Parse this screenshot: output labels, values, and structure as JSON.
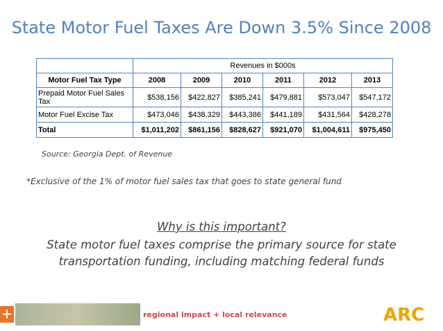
{
  "title": "State Motor Fuel Taxes Are Down 3.5% Since 2008",
  "table": {
    "group_header": "Revenues in $000s",
    "columns": [
      "Motor Fuel Tax Type",
      "2008",
      "2009",
      "2010",
      "2011",
      "2012",
      "2013"
    ],
    "rows": [
      [
        "Prepaid Motor Fuel Sales Tax",
        "$538,156",
        "$422,827",
        "$385,241",
        "$479,881",
        "$573,047",
        "$547,172"
      ],
      [
        "Motor Fuel Excise Tax",
        "$473,046",
        "$438,329",
        "$443,386",
        "$441,189",
        "$431,564",
        "$428,278"
      ],
      [
        "Total",
        "$1,011,202",
        "$861,156",
        "$828,627",
        "$921,070",
        "$1,004,611",
        "$975,450"
      ]
    ]
  },
  "source": "Source: Georgia Dept. of Revenue",
  "footnote": "*Exclusive of the 1% of motor fuel sales tax that goes to state general fund",
  "question": "Why is this important?",
  "explanation": "State motor fuel taxes comprise the primary source for state transportation funding, including matching federal funds",
  "footer": {
    "plus": "+",
    "tagline": "regional impact + local relevance",
    "logo": "ARC"
  }
}
